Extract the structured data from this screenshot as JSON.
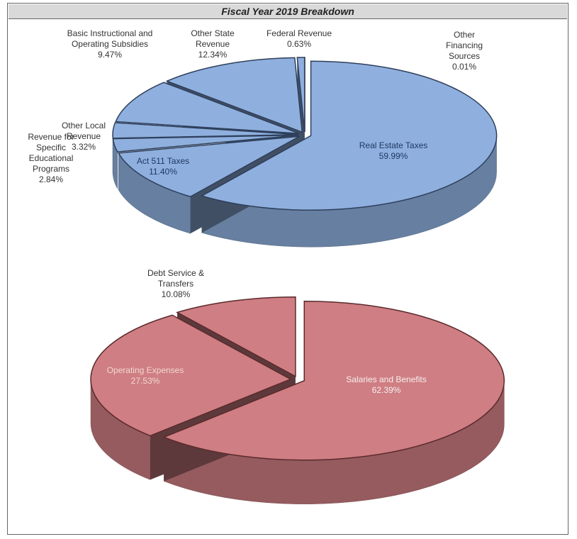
{
  "title": "Fiscal Year 2019 Breakdown",
  "chart_data": [
    {
      "type": "pie",
      "categories": [
        "Real Estate Taxes",
        "Act 511 Taxes",
        "Revenue for Specific Educational Programs",
        "Other Local Revenue",
        "Basic Instructional and Operating Subsidies",
        "Other State Revenue",
        "Federal Revenue",
        "Other Financing Sources"
      ],
      "values": [
        59.99,
        11.4,
        2.84,
        3.32,
        9.47,
        12.34,
        0.63,
        0.01
      ],
      "value_labels": [
        "59.99%",
        "11.40%",
        "2.84%",
        "3.32%",
        "9.47%",
        "12.34%",
        "0.63%",
        "0.01%"
      ],
      "color": "#8fb0de"
    },
    {
      "type": "pie",
      "categories": [
        "Salaries and Benefits",
        "Operating Expenses",
        "Debt Service & Transfers"
      ],
      "values": [
        62.39,
        27.53,
        10.08
      ],
      "value_labels": [
        "62.39%",
        "27.53%",
        "10.08%"
      ],
      "color": "#cf7e83"
    }
  ]
}
